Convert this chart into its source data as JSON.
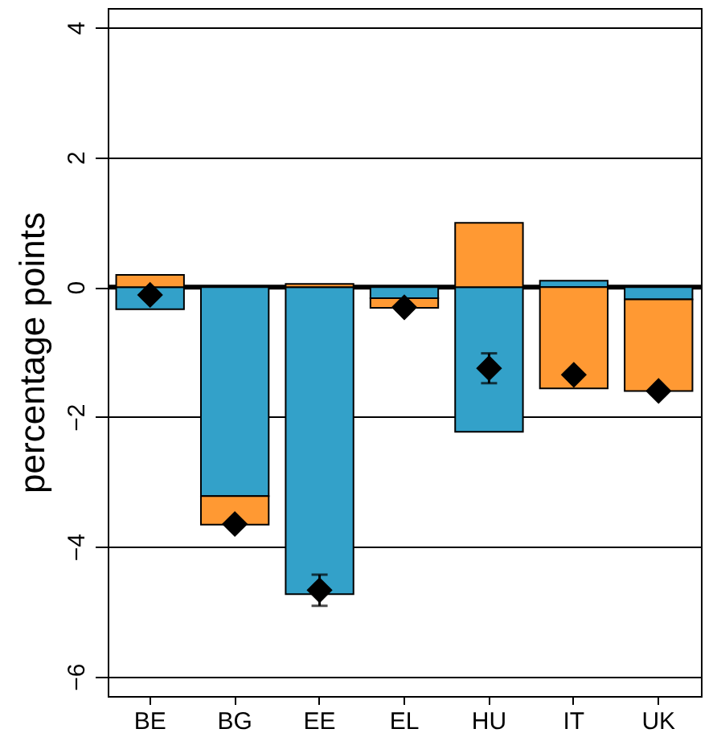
{
  "chart_data": {
    "type": "bar",
    "stacked": true,
    "ylabel": "percentage points",
    "categories": [
      "BE",
      "BG",
      "EE",
      "EL",
      "HU",
      "IT",
      "UK"
    ],
    "series": [
      {
        "color": "#33a1c9",
        "values": [
          -0.34,
          -3.22,
          -4.73,
          -0.17,
          -2.23,
          0.1,
          -0.19
        ]
      },
      {
        "color": "#ff9933",
        "values": [
          0.19,
          -0.44,
          0.05,
          -0.15,
          0.99,
          -1.56,
          -1.41
        ]
      },
      {
        "type": "scatter",
        "color": "#000000",
        "marker": "diamond",
        "x": [
          "BE",
          "BG",
          "EE",
          "EL",
          "HU",
          "IT",
          "UK"
        ],
        "values": [
          -0.12,
          -3.65,
          -4.67,
          -0.31,
          -1.25,
          -1.35,
          -1.6
        ],
        "errors": [
          null,
          null,
          0.24,
          null,
          0.23,
          null,
          null
        ]
      }
    ],
    "ylim": [
      -6.3,
      4.3
    ],
    "yticks": [
      -6,
      -4,
      -2,
      0,
      2,
      4
    ],
    "grid": "y",
    "ref_lines": [
      {
        "axis": "y",
        "value": 0,
        "color": "#000000"
      }
    ]
  }
}
